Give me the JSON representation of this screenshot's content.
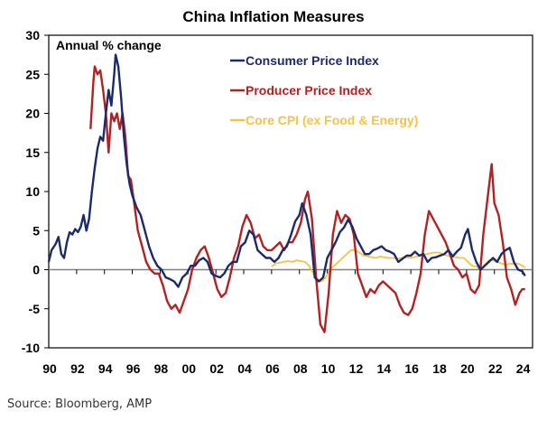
{
  "chart_data": {
    "type": "line",
    "title": "China Inflation Measures",
    "ylabel": "Annual % change",
    "xlabel": "",
    "ylim": [
      -10,
      30
    ],
    "xlim": [
      1990,
      2024.5
    ],
    "yticks": [
      30,
      25,
      20,
      15,
      10,
      5,
      0,
      -5,
      -10
    ],
    "xticks": [
      1990,
      1992,
      1994,
      1996,
      1998,
      2000,
      2002,
      2004,
      2006,
      2008,
      2010,
      2012,
      2014,
      2016,
      2018,
      2020,
      2022,
      2024
    ],
    "xtick_labels": [
      "90",
      "92",
      "94",
      "96",
      "98",
      "00",
      "02",
      "04",
      "06",
      "08",
      "10",
      "12",
      "14",
      "16",
      "18",
      "20",
      "22",
      "24"
    ],
    "grid": false,
    "legend_position": "top-center",
    "series": [
      {
        "name": "Consumer Price Index",
        "color": "#1b2a6b",
        "x": [
          1990.0,
          1990.2,
          1990.5,
          1990.7,
          1990.9,
          1991.1,
          1991.3,
          1991.5,
          1991.7,
          1991.9,
          1992.1,
          1992.3,
          1992.5,
          1992.7,
          1992.9,
          1993.1,
          1993.3,
          1993.5,
          1993.7,
          1993.9,
          1994.1,
          1994.3,
          1994.5,
          1994.7,
          1994.8,
          1995.0,
          1995.2,
          1995.4,
          1995.6,
          1995.8,
          1996.0,
          1996.3,
          1996.6,
          1996.9,
          1997.2,
          1997.5,
          1997.8,
          1998.1,
          1998.4,
          1998.7,
          1999.0,
          1999.3,
          1999.6,
          1999.9,
          2000.2,
          2000.5,
          2000.8,
          2001.1,
          2001.4,
          2001.7,
          2002.0,
          2002.3,
          2002.6,
          2002.9,
          2003.2,
          2003.5,
          2003.8,
          2004.1,
          2004.4,
          2004.7,
          2005.0,
          2005.3,
          2005.6,
          2005.9,
          2006.2,
          2006.5,
          2006.8,
          2007.1,
          2007.4,
          2007.7,
          2008.0,
          2008.2,
          2008.5,
          2008.8,
          2009.1,
          2009.4,
          2009.7,
          2010.0,
          2010.3,
          2010.6,
          2010.9,
          2011.2,
          2011.5,
          2011.8,
          2012.1,
          2012.4,
          2012.7,
          2013.0,
          2013.3,
          2013.6,
          2013.9,
          2014.2,
          2014.5,
          2014.8,
          2015.1,
          2015.4,
          2015.7,
          2016.0,
          2016.3,
          2016.6,
          2016.9,
          2017.2,
          2017.5,
          2017.8,
          2018.1,
          2018.4,
          2018.7,
          2019.0,
          2019.3,
          2019.6,
          2019.9,
          2020.1,
          2020.4,
          2020.7,
          2021.0,
          2021.3,
          2021.6,
          2021.9,
          2022.2,
          2022.5,
          2022.8,
          2023.1,
          2023.4,
          2023.7,
          2024.0,
          2024.2
        ],
        "values": [
          1.0,
          2.5,
          3.3,
          4.2,
          2.0,
          1.5,
          3.5,
          4.8,
          4.5,
          5.2,
          4.8,
          5.5,
          7.0,
          5.0,
          6.5,
          10.0,
          13.0,
          15.5,
          17.0,
          16.5,
          20.0,
          23.0,
          21.0,
          25.0,
          27.5,
          26.0,
          22.0,
          17.0,
          13.5,
          11.0,
          9.5,
          8.0,
          7.0,
          5.0,
          3.0,
          1.5,
          0.5,
          0.0,
          -1.0,
          -1.2,
          -1.5,
          -2.2,
          -1.0,
          -0.5,
          0.5,
          0.5,
          1.2,
          1.5,
          1.0,
          -0.5,
          -0.8,
          -1.0,
          -0.5,
          0.5,
          1.0,
          1.0,
          3.0,
          3.5,
          5.0,
          4.5,
          2.5,
          2.0,
          1.5,
          1.5,
          1.0,
          1.5,
          2.5,
          3.0,
          4.5,
          6.2,
          7.0,
          8.5,
          7.0,
          4.5,
          -1.0,
          -1.5,
          -1.0,
          1.5,
          2.5,
          3.5,
          4.8,
          5.4,
          6.4,
          5.5,
          4.0,
          3.0,
          2.0,
          2.0,
          2.5,
          2.7,
          3.0,
          2.5,
          2.3,
          2.0,
          1.0,
          1.4,
          1.8,
          1.8,
          2.3,
          1.8,
          2.0,
          1.0,
          1.5,
          1.6,
          1.8,
          2.0,
          2.5,
          1.7,
          2.3,
          2.8,
          4.5,
          5.2,
          2.5,
          1.0,
          0.0,
          0.5,
          1.0,
          1.5,
          1.0,
          2.0,
          2.5,
          2.8,
          1.0,
          0.0,
          -0.2,
          -0.8
        ]
      },
      {
        "name": "Producer Price Index",
        "color": "#b22222",
        "x": [
          1993.0,
          1993.2,
          1993.3,
          1993.5,
          1993.7,
          1993.9,
          1994.1,
          1994.3,
          1994.5,
          1994.7,
          1994.9,
          1995.1,
          1995.3,
          1995.5,
          1995.7,
          1995.9,
          1996.1,
          1996.4,
          1996.7,
          1997.0,
          1997.3,
          1997.6,
          1997.9,
          1998.2,
          1998.5,
          1998.8,
          1999.1,
          1999.4,
          1999.7,
          2000.0,
          2000.3,
          2000.6,
          2000.9,
          2001.2,
          2001.5,
          2001.8,
          2002.1,
          2002.4,
          2002.7,
          2003.0,
          2003.3,
          2003.6,
          2003.9,
          2004.2,
          2004.5,
          2004.8,
          2005.1,
          2005.4,
          2005.7,
          2006.0,
          2006.3,
          2006.6,
          2006.9,
          2007.2,
          2007.5,
          2007.8,
          2008.1,
          2008.4,
          2008.6,
          2008.9,
          2009.2,
          2009.5,
          2009.8,
          2010.1,
          2010.4,
          2010.7,
          2011.0,
          2011.3,
          2011.6,
          2011.9,
          2012.2,
          2012.5,
          2012.8,
          2013.1,
          2013.4,
          2013.7,
          2014.0,
          2014.3,
          2014.6,
          2014.9,
          2015.2,
          2015.5,
          2015.8,
          2016.1,
          2016.4,
          2016.7,
          2017.0,
          2017.3,
          2017.6,
          2017.9,
          2018.2,
          2018.5,
          2018.8,
          2019.1,
          2019.4,
          2019.7,
          2020.0,
          2020.3,
          2020.6,
          2020.9,
          2021.2,
          2021.5,
          2021.8,
          2022.0,
          2022.3,
          2022.6,
          2022.9,
          2023.2,
          2023.5,
          2023.8,
          2024.0,
          2024.2
        ],
        "values": [
          18.0,
          24.0,
          26.0,
          25.0,
          25.5,
          23.0,
          20.0,
          15.0,
          20.0,
          19.0,
          20.0,
          18.0,
          20.0,
          17.0,
          12.0,
          11.5,
          9.0,
          5.0,
          3.0,
          1.0,
          0.0,
          -0.5,
          -0.5,
          -2.0,
          -4.0,
          -5.0,
          -4.5,
          -5.5,
          -4.0,
          -2.5,
          0.0,
          1.5,
          2.5,
          3.0,
          1.5,
          -0.5,
          -2.5,
          -3.5,
          -3.0,
          -1.0,
          1.5,
          3.0,
          5.5,
          7.0,
          6.0,
          4.0,
          4.5,
          3.0,
          2.5,
          2.5,
          3.0,
          3.5,
          2.5,
          3.5,
          3.5,
          4.5,
          6.0,
          9.0,
          10.0,
          6.5,
          -1.0,
          -7.0,
          -8.0,
          -3.0,
          4.5,
          7.5,
          6.0,
          7.0,
          6.5,
          4.5,
          -0.5,
          -2.0,
          -3.5,
          -2.5,
          -3.0,
          -2.0,
          -1.5,
          -2.0,
          -2.5,
          -3.0,
          -4.5,
          -5.5,
          -5.8,
          -5.0,
          -3.0,
          -0.5,
          4.5,
          7.5,
          6.5,
          5.5,
          4.5,
          3.5,
          2.0,
          0.5,
          0.0,
          -1.0,
          -0.5,
          -2.5,
          -3.0,
          -2.0,
          4.5,
          9.0,
          13.5,
          8.5,
          7.0,
          3.5,
          -1.0,
          -2.5,
          -4.5,
          -3.0,
          -2.5,
          -2.5
        ]
      },
      {
        "name": "Core CPI (ex Food & Energy)",
        "color": "#f5c242",
        "x": [
          2006.0,
          2006.3,
          2006.6,
          2006.9,
          2007.2,
          2007.5,
          2007.8,
          2008.1,
          2008.4,
          2008.7,
          2009.0,
          2009.3,
          2009.6,
          2009.9,
          2010.2,
          2010.5,
          2010.8,
          2011.1,
          2011.4,
          2011.7,
          2012.0,
          2012.3,
          2012.6,
          2012.9,
          2013.2,
          2013.5,
          2013.8,
          2014.1,
          2014.4,
          2014.7,
          2015.0,
          2015.3,
          2015.6,
          2015.9,
          2016.2,
          2016.5,
          2016.8,
          2017.1,
          2017.4,
          2017.7,
          2018.0,
          2018.3,
          2018.6,
          2018.9,
          2019.2,
          2019.5,
          2019.8,
          2020.1,
          2020.4,
          2020.7,
          2021.0,
          2021.3,
          2021.6,
          2021.9,
          2022.2,
          2022.5,
          2022.8,
          2023.1,
          2023.4,
          2023.7,
          2024.0,
          2024.2
        ],
        "values": [
          0.4,
          0.8,
          0.9,
          1.0,
          1.1,
          1.0,
          1.2,
          1.1,
          1.0,
          0.5,
          -0.5,
          -1.2,
          -1.5,
          -1.0,
          0.0,
          0.5,
          1.0,
          1.5,
          2.0,
          2.5,
          2.5,
          2.2,
          1.8,
          1.7,
          1.6,
          1.5,
          1.7,
          1.6,
          1.5,
          1.5,
          1.4,
          1.5,
          1.6,
          1.5,
          1.6,
          1.7,
          1.8,
          2.0,
          2.1,
          2.2,
          2.2,
          2.0,
          1.8,
          1.7,
          1.6,
          1.5,
          1.5,
          1.0,
          0.5,
          0.4,
          0.0,
          0.6,
          1.2,
          1.2,
          1.0,
          0.8,
          0.6,
          0.8,
          0.7,
          0.8,
          0.5,
          0.3
        ]
      }
    ]
  },
  "footer": {
    "source": "Source: Bloomberg, AMP"
  }
}
